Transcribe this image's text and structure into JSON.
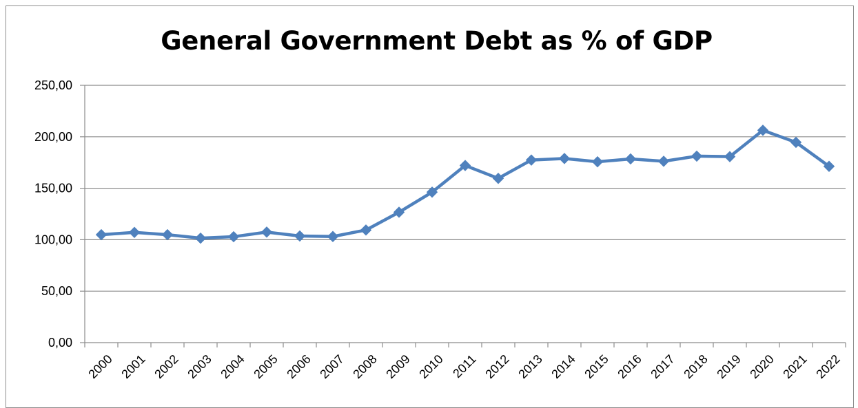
{
  "chart_data": {
    "type": "line",
    "title": "General Government Debt as % of GDP",
    "xlabel": "",
    "ylabel": "",
    "categories": [
      "2000",
      "2001",
      "2002",
      "2003",
      "2004",
      "2005",
      "2006",
      "2007",
      "2008",
      "2009",
      "2010",
      "2011",
      "2012",
      "2013",
      "2014",
      "2015",
      "2016",
      "2017",
      "2018",
      "2019",
      "2020",
      "2021",
      "2022"
    ],
    "series": [
      {
        "values": [
          104.9,
          107.1,
          104.9,
          101.5,
          102.9,
          107.4,
          103.6,
          103.1,
          109.4,
          126.7,
          146.2,
          172.1,
          159.6,
          177.4,
          178.9,
          175.7,
          178.5,
          176.2,
          181.2,
          180.7,
          206.3,
          194.6,
          171.3
        ],
        "color": "#4f81bd",
        "marker": "diamond"
      }
    ],
    "ylim": [
      0,
      250
    ],
    "yticks": [
      0,
      50,
      100,
      150,
      200,
      250
    ],
    "ytick_labels": [
      "0,00",
      "50,00",
      "100,00",
      "150,00",
      "200,00",
      "250,00"
    ],
    "grid": "horizontal",
    "legend": "none",
    "colors": {
      "line": "#4f81bd",
      "gridline": "#8c8c8c",
      "axis": "#8c8c8c"
    }
  }
}
